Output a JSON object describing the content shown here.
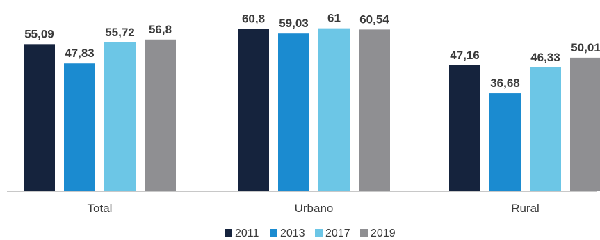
{
  "chart_data": {
    "type": "bar",
    "categories": [
      "Total",
      "Urbano",
      "Rural"
    ],
    "series": [
      {
        "name": "2011",
        "color": "#15233d",
        "values": [
          55.09,
          60.8,
          47.16
        ],
        "labels": [
          "55,09",
          "60,8",
          "47,16"
        ]
      },
      {
        "name": "2013",
        "color": "#1b8bd0",
        "values": [
          47.83,
          59.03,
          36.68
        ],
        "labels": [
          "47,83",
          "59,03",
          "36,68"
        ]
      },
      {
        "name": "2017",
        "color": "#6cc6e6",
        "values": [
          55.72,
          61,
          46.33
        ],
        "labels": [
          "55,72",
          "61",
          "46,33"
        ]
      },
      {
        "name": "2019",
        "color": "#8f8f92",
        "values": [
          56.8,
          60.54,
          50.01
        ],
        "labels": [
          "56,8",
          "60,54",
          "50,01"
        ]
      }
    ],
    "ylim": [
      0,
      65
    ],
    "grid": false,
    "legend_position": "bottom-center",
    "axis_line_color": "#c8c8c8"
  }
}
